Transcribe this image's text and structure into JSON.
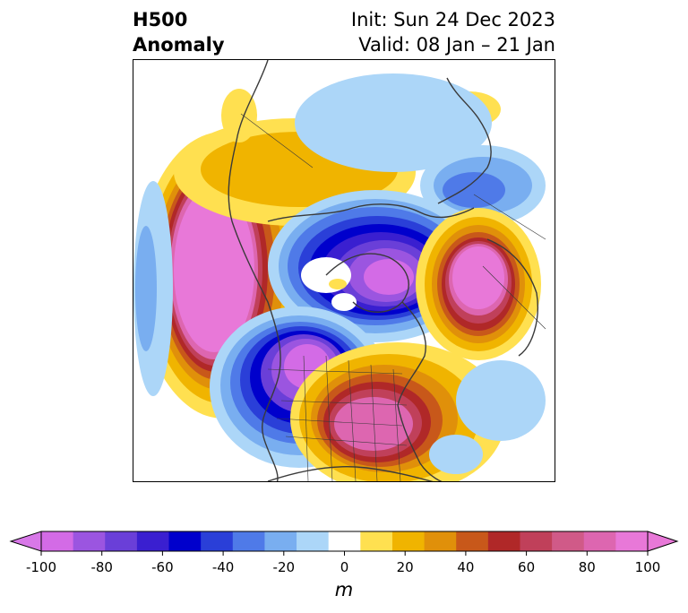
{
  "header": {
    "variable": "H500",
    "field": "Anomaly",
    "init": "Init: Sun 24 Dec 2023",
    "valid": "Valid: 08 Jan – 21 Jan"
  },
  "map": {
    "projection": "north-polar-stereographic",
    "region": "North Pacific / North America / North Atlantic",
    "anomaly_centers": [
      {
        "name": "pacific-ridge",
        "sign": "positive",
        "max_m": 100
      },
      {
        "name": "western-us-trough",
        "sign": "negative",
        "max_m": -90
      },
      {
        "name": "hudson-bay-trough",
        "sign": "negative",
        "max_m": -80
      },
      {
        "name": "eastern-us-ridge",
        "sign": "positive",
        "max_m": 90
      },
      {
        "name": "north-atlantic-ridge",
        "sign": "positive",
        "max_m": 100
      },
      {
        "name": "arctic-ridge",
        "sign": "positive",
        "max_m": 30
      },
      {
        "name": "greenland-trough",
        "sign": "negative",
        "max_m": -40
      }
    ]
  },
  "colorbar": {
    "unit": "m",
    "extend": "both",
    "ticks": [
      "-100",
      "-80",
      "-60",
      "-40",
      "-20",
      "0",
      "20",
      "40",
      "60",
      "80",
      "100"
    ],
    "colors": [
      "#d36be6",
      "#9b55e0",
      "#6a3fd8",
      "#3a1fd0",
      "#0000cc",
      "#2a3fd8",
      "#4f7ae8",
      "#79aef0",
      "#acd6f8",
      "#ffffff",
      "#ffe050",
      "#f0b400",
      "#e0900a",
      "#c8581a",
      "#b02828",
      "#c0405a",
      "#d05a88",
      "#dd66b0",
      "#e878d8"
    ],
    "under_color": "#d878e8",
    "over_color": "#e878d8"
  }
}
